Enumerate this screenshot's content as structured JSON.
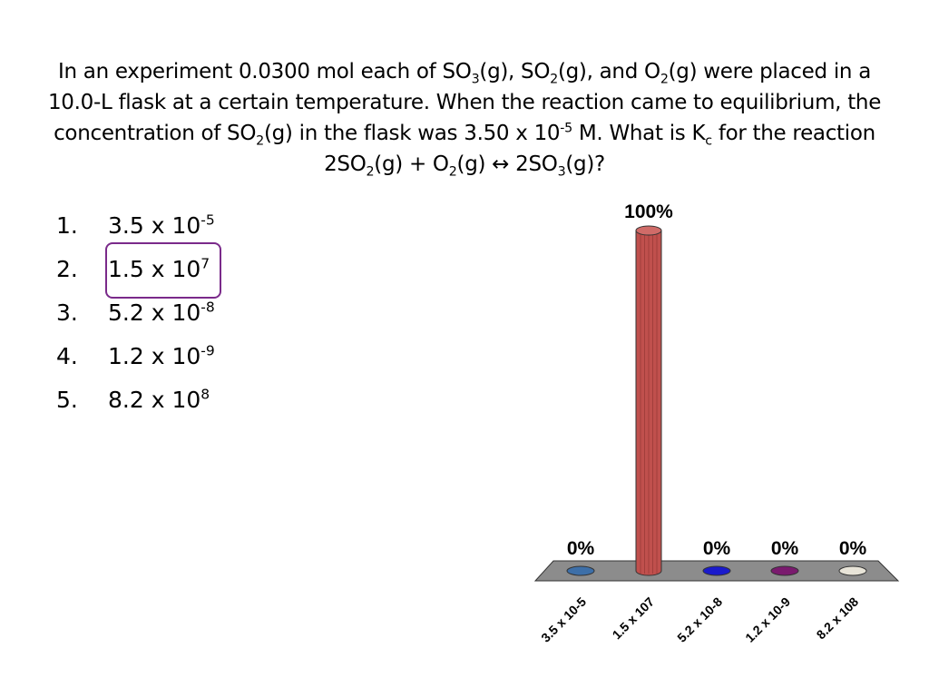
{
  "question": {
    "parts": [
      {
        "t": "In an experiment 0.0300 mol each of SO"
      },
      {
        "sub": "3"
      },
      {
        "t": "(g), SO"
      },
      {
        "sub": "2"
      },
      {
        "t": "(g), and O"
      },
      {
        "sub": "2"
      },
      {
        "t": "(g) were placed in a 10.0-L flask at a certain temperature.  When the reaction came to equilibrium, the concentration of SO"
      },
      {
        "sub": "2"
      },
      {
        "t": "(g) in the flask was 3.50 x 10"
      },
      {
        "sup": "-5"
      },
      {
        "t": " M.  What is K"
      },
      {
        "sub": "c"
      },
      {
        "t": " for the reaction 2SO"
      },
      {
        "sub": "2"
      },
      {
        "t": "(g) + O"
      },
      {
        "sub": "2"
      },
      {
        "t": "(g) ↔ 2SO"
      },
      {
        "sub": "3"
      },
      {
        "t": "(g)?"
      }
    ]
  },
  "answers": [
    {
      "number": "1.",
      "base": "3.5 x 10",
      "exp": "-5"
    },
    {
      "number": "2.",
      "base": "1.5 x 10",
      "exp": "7"
    },
    {
      "number": "3.",
      "base": "5.2 x 10",
      "exp": "-8"
    },
    {
      "number": "4.",
      "base": "1.2 x 10",
      "exp": "-9"
    },
    {
      "number": "5.",
      "base": "8.2 x 10",
      "exp": "8"
    }
  ],
  "selected_answer_index": 1,
  "chart_data": {
    "type": "bar",
    "categories": [
      "3.5 x 10-5",
      "1.5 x 107",
      "5.2 x 10-8",
      "1.2 x 10-9",
      "8.2 x 108"
    ],
    "values": [
      0,
      100,
      0,
      0,
      0
    ],
    "data_labels": [
      "0%",
      "100%",
      "0%",
      "0%",
      "0%"
    ],
    "ylim": [
      0,
      100
    ],
    "colors": [
      "#3d6fa8",
      "#c0504d",
      "#1a1acc",
      "#7a1a6e",
      "#e8e4d8"
    ],
    "style": "3d-cylinder",
    "grid": false,
    "legend": "none"
  }
}
